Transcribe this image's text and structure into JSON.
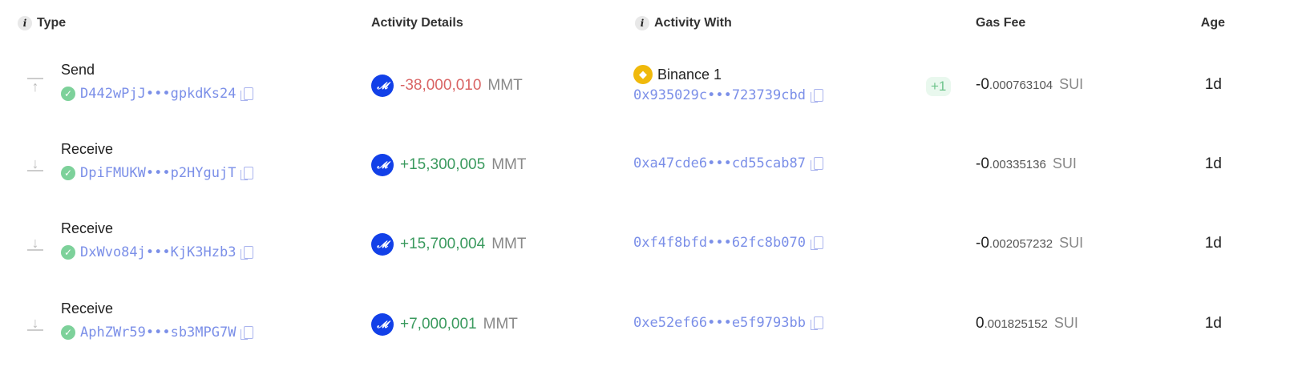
{
  "headers": {
    "type": "Type",
    "details": "Activity Details",
    "with": "Activity With",
    "gas": "Gas Fee",
    "age": "Age"
  },
  "rows": [
    {
      "type": "Send",
      "direction": "up",
      "tx": "D442wPjJ•••gpkdKs24",
      "amount": "-38,000,010",
      "amount_sign": "neg",
      "token": "MMT",
      "with_name": "Binance 1",
      "with_addr": "0x935029c•••723739cbd",
      "extra": "+1",
      "gas_int": "-0",
      "gas_dec": ".000763104",
      "gas_unit": "SUI",
      "age": "1d"
    },
    {
      "type": "Receive",
      "direction": "down",
      "tx": "DpiFMUKW•••p2HYgujT",
      "amount": "+15,300,005",
      "amount_sign": "pos",
      "token": "MMT",
      "with_addr": "0xa47cde6•••cd55cab87",
      "gas_int": "-0",
      "gas_dec": ".00335136",
      "gas_unit": "SUI",
      "age": "1d"
    },
    {
      "type": "Receive",
      "direction": "down",
      "tx": "DxWvo84j•••KjK3Hzb3",
      "amount": "+15,700,004",
      "amount_sign": "pos",
      "token": "MMT",
      "with_addr": "0xf4f8bfd•••62fc8b070",
      "gas_int": "-0",
      "gas_dec": ".002057232",
      "gas_unit": "SUI",
      "age": "1d"
    },
    {
      "type": "Receive",
      "direction": "down",
      "tx": "AphZWr59•••sb3MPG7W",
      "amount": "+7,000,001",
      "amount_sign": "pos",
      "token": "MMT",
      "with_addr": "0xe52ef66•••e5f9793bb",
      "gas_int": "0",
      "gas_dec": ".001825152",
      "gas_unit": "SUI",
      "age": "1d"
    }
  ],
  "colors": {
    "negative": "#d96464",
    "positive": "#3a9a5e",
    "link": "#7b8fe8",
    "token": "#1240e8",
    "binance": "#f0b90b"
  }
}
